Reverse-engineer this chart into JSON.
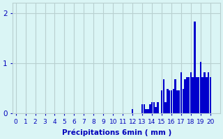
{
  "bar_data": [
    [
      0,
      0
    ],
    [
      0.2,
      0
    ],
    [
      0.4,
      0
    ],
    [
      0.6,
      0
    ],
    [
      0.8,
      0
    ],
    [
      1,
      0
    ],
    [
      1.2,
      0
    ],
    [
      1.4,
      0
    ],
    [
      1.6,
      0
    ],
    [
      1.8,
      0
    ],
    [
      2,
      0
    ],
    [
      2.2,
      0
    ],
    [
      2.4,
      0
    ],
    [
      2.6,
      0
    ],
    [
      2.8,
      0
    ],
    [
      3,
      0
    ],
    [
      3.2,
      0
    ],
    [
      3.4,
      0
    ],
    [
      3.6,
      0
    ],
    [
      3.8,
      0
    ],
    [
      4,
      0
    ],
    [
      4.2,
      0
    ],
    [
      4.4,
      0
    ],
    [
      4.6,
      0
    ],
    [
      4.8,
      0
    ],
    [
      5,
      0
    ],
    [
      5.2,
      0
    ],
    [
      5.4,
      0
    ],
    [
      5.6,
      0
    ],
    [
      5.8,
      0
    ],
    [
      6,
      0
    ],
    [
      6.2,
      0
    ],
    [
      6.4,
      0
    ],
    [
      6.6,
      0
    ],
    [
      6.8,
      0
    ],
    [
      7,
      0
    ],
    [
      7.2,
      0
    ],
    [
      7.4,
      0
    ],
    [
      7.6,
      0
    ],
    [
      7.8,
      0
    ],
    [
      8,
      0
    ],
    [
      8.2,
      0
    ],
    [
      8.4,
      0
    ],
    [
      8.6,
      0
    ],
    [
      8.8,
      0
    ],
    [
      9,
      0
    ],
    [
      9.2,
      0
    ],
    [
      9.4,
      0
    ],
    [
      9.6,
      0
    ],
    [
      9.8,
      0
    ],
    [
      10,
      0
    ],
    [
      10.2,
      0
    ],
    [
      10.4,
      0
    ],
    [
      10.6,
      0
    ],
    [
      10.8,
      0
    ],
    [
      11,
      0
    ],
    [
      11.2,
      0
    ],
    [
      11.4,
      0
    ],
    [
      11.6,
      0
    ],
    [
      11.8,
      0
    ],
    [
      12,
      0.08
    ],
    [
      12.2,
      0
    ],
    [
      12.4,
      0
    ],
    [
      12.6,
      0
    ],
    [
      12.8,
      0
    ],
    [
      13,
      0.18
    ],
    [
      13.2,
      0.18
    ],
    [
      13.4,
      0.08
    ],
    [
      13.6,
      0.08
    ],
    [
      13.8,
      0.18
    ],
    [
      14,
      0.22
    ],
    [
      14.2,
      0.22
    ],
    [
      14.4,
      0.12
    ],
    [
      14.6,
      0.22
    ],
    [
      14.8,
      0
    ],
    [
      15,
      0.46
    ],
    [
      15.2,
      0.68
    ],
    [
      15.4,
      0.22
    ],
    [
      15.6,
      0.48
    ],
    [
      15.8,
      0.46
    ],
    [
      16,
      0.46
    ],
    [
      16.2,
      0.48
    ],
    [
      16.4,
      0.68
    ],
    [
      16.6,
      0.46
    ],
    [
      16.8,
      0.46
    ],
    [
      17,
      0.82
    ],
    [
      17.2,
      0.48
    ],
    [
      17.4,
      0.68
    ],
    [
      17.6,
      0.72
    ],
    [
      17.8,
      0.72
    ],
    [
      18,
      0.82
    ],
    [
      18.2,
      0.72
    ],
    [
      18.4,
      1.83
    ],
    [
      18.6,
      0.72
    ],
    [
      18.8,
      0.72
    ],
    [
      19,
      1.02
    ],
    [
      19.2,
      0.72
    ],
    [
      19.4,
      0.82
    ],
    [
      19.6,
      0.72
    ],
    [
      19.8,
      0.82
    ],
    [
      20,
      0.72
    ]
  ],
  "bar_color": "#0000cc",
  "bg_color": "#daf5f5",
  "grid_color": "#b8d0d0",
  "xlabel": "Précipitations 6min ( mm )",
  "ylim": [
    0,
    2.2
  ],
  "xlim": [
    -0.3,
    21.0
  ],
  "yticks": [
    0,
    1,
    2
  ],
  "xtick_positions": [
    0,
    1,
    2,
    3,
    4,
    5,
    6,
    7,
    8,
    9,
    10,
    11,
    12,
    13,
    14,
    15,
    16,
    17,
    18,
    19,
    20
  ],
  "tick_color": "#0000bb",
  "label_fontsize": 7.5,
  "tick_fontsize": 6.5,
  "bar_width": 0.18
}
